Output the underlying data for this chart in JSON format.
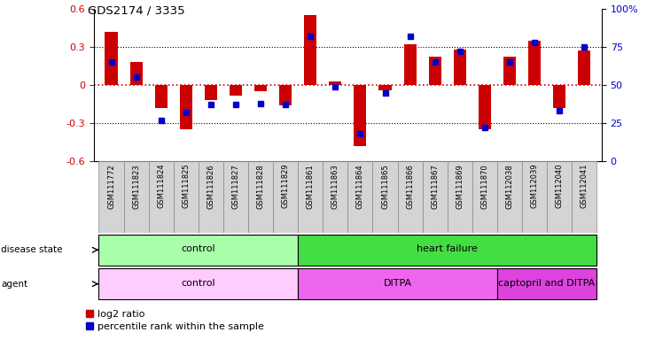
{
  "title": "GDS2174 / 3335",
  "samples": [
    "GSM111772",
    "GSM111823",
    "GSM111824",
    "GSM111825",
    "GSM111826",
    "GSM111827",
    "GSM111828",
    "GSM111829",
    "GSM111861",
    "GSM111863",
    "GSM111864",
    "GSM111865",
    "GSM111866",
    "GSM111867",
    "GSM111869",
    "GSM111870",
    "GSM112038",
    "GSM112039",
    "GSM112040",
    "GSM112041"
  ],
  "log2_ratio": [
    0.42,
    0.18,
    -0.18,
    -0.35,
    -0.12,
    -0.08,
    -0.05,
    -0.16,
    0.55,
    0.03,
    -0.48,
    -0.04,
    0.32,
    0.22,
    0.28,
    -0.35,
    0.22,
    0.35,
    -0.18,
    0.27
  ],
  "percentile": [
    65,
    55,
    27,
    32,
    37,
    37,
    38,
    37,
    82,
    49,
    18,
    45,
    82,
    65,
    72,
    22,
    65,
    78,
    33,
    75
  ],
  "ylim": [
    -0.6,
    0.6
  ],
  "yticks_left": [
    -0.6,
    -0.3,
    0,
    0.3,
    0.6
  ],
  "yticks_right": [
    0,
    25,
    50,
    75,
    100
  ],
  "bar_color_red": "#cc0000",
  "dot_color_blue": "#0000cc",
  "zero_line_color": "#cc0000",
  "disease_state_groups": [
    {
      "label": "control",
      "start": 0,
      "end": 7,
      "color": "#aaffaa"
    },
    {
      "label": "heart failure",
      "start": 8,
      "end": 19,
      "color": "#44dd44"
    }
  ],
  "agent_groups": [
    {
      "label": "control",
      "start": 0,
      "end": 7,
      "color": "#ffccff"
    },
    {
      "label": "DITPA",
      "start": 8,
      "end": 15,
      "color": "#ee66ee"
    },
    {
      "label": "captopril and DITPA",
      "start": 16,
      "end": 19,
      "color": "#dd44dd"
    }
  ],
  "legend_red_label": "log2 ratio",
  "legend_blue_label": "percentile rank within the sample",
  "bg_color": "#ffffff",
  "bar_width": 0.5,
  "xtick_bg": "#d4d4d4"
}
